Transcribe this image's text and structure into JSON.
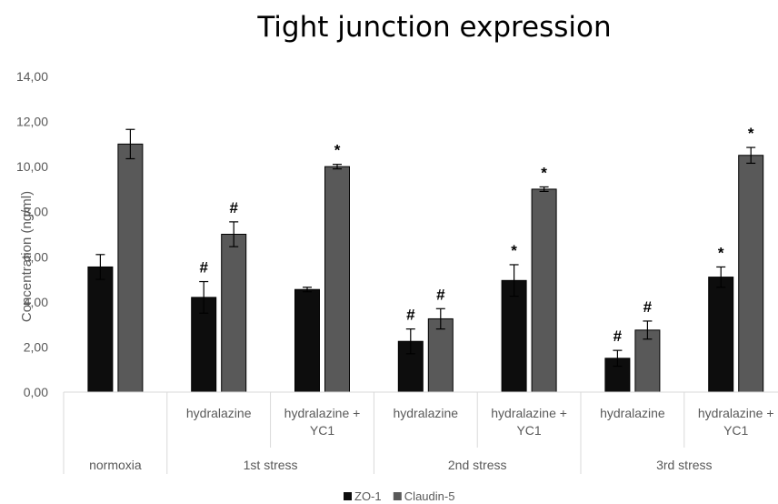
{
  "chart_data": {
    "type": "bar",
    "title": "Tight junction expression",
    "ylabel": "Concentration (ng/ml)",
    "xlabel": "",
    "ylim": [
      0,
      14
    ],
    "yticks": [
      "0,00",
      "2,00",
      "4,00",
      "6,00",
      "8,00",
      "10,00",
      "12,00",
      "14,00"
    ],
    "grid": false,
    "legend_position": "bottom",
    "categories": [
      {
        "group": "normoxia",
        "label": ""
      },
      {
        "group": "1st stress",
        "label": "hydralazine"
      },
      {
        "group": "1st stress",
        "label": "hydralazine + YC1"
      },
      {
        "group": "2nd stress",
        "label": "hydralazine"
      },
      {
        "group": "2nd stress",
        "label": "hydralazine + YC1"
      },
      {
        "group": "3rd stress",
        "label": "hydralazine"
      },
      {
        "group": "3rd stress",
        "label": "hydralazine + YC1"
      }
    ],
    "groups": [
      "normoxia",
      "1st stress",
      "2nd stress",
      "3rd stress"
    ],
    "series": [
      {
        "name": "ZO-1",
        "color": "#0d0d0d",
        "values": [
          5.55,
          4.2,
          4.55,
          2.25,
          4.95,
          1.5,
          5.1
        ],
        "errors": [
          0.55,
          0.7,
          0.1,
          0.55,
          0.7,
          0.35,
          0.45
        ],
        "marks": [
          "",
          "#",
          "",
          "#",
          "*",
          "#",
          "*"
        ]
      },
      {
        "name": "Claudin-5",
        "color": "#595959",
        "values": [
          11.0,
          7.0,
          10.0,
          3.25,
          9.0,
          2.75,
          10.5
        ],
        "errors": [
          0.65,
          0.55,
          0.1,
          0.45,
          0.1,
          0.4,
          0.35
        ],
        "marks": [
          "",
          "#",
          "*",
          "#",
          "*",
          "#",
          "*"
        ]
      }
    ]
  }
}
